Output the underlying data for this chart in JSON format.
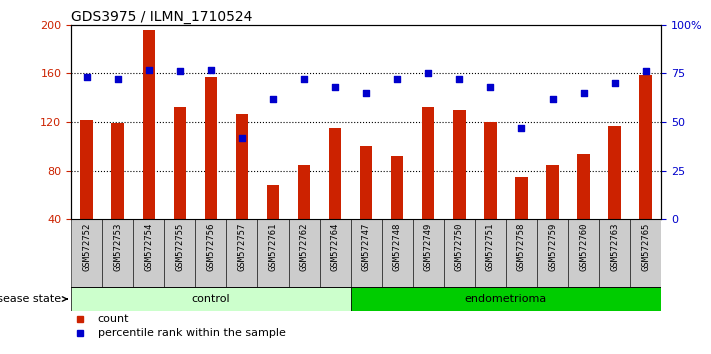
{
  "title": "GDS3975 / ILMN_1710524",
  "samples": [
    "GSM572752",
    "GSM572753",
    "GSM572754",
    "GSM572755",
    "GSM572756",
    "GSM572757",
    "GSM572761",
    "GSM572762",
    "GSM572764",
    "GSM572747",
    "GSM572748",
    "GSM572749",
    "GSM572750",
    "GSM572751",
    "GSM572758",
    "GSM572759",
    "GSM572760",
    "GSM572763",
    "GSM572765"
  ],
  "counts": [
    122,
    119,
    196,
    132,
    157,
    127,
    68,
    85,
    115,
    100,
    92,
    132,
    130,
    120,
    75,
    85,
    94,
    117,
    159
  ],
  "percentiles": [
    73,
    72,
    77,
    76,
    77,
    42,
    62,
    72,
    68,
    65,
    72,
    75,
    72,
    68,
    47,
    62,
    65,
    70,
    76
  ],
  "control_count": 9,
  "endometrioma_count": 10,
  "ylim_left": [
    40,
    200
  ],
  "ylim_right": [
    0,
    100
  ],
  "yticks_left": [
    40,
    80,
    120,
    160,
    200
  ],
  "yticks_right": [
    0,
    25,
    50,
    75,
    100
  ],
  "bar_color": "#cc2200",
  "dot_color": "#0000cc",
  "control_bg_light": "#ccffcc",
  "control_bg_dark": "#00cc00",
  "endometrioma_bg": "#00cc00",
  "label_bg": "#cccccc",
  "legend_count_label": "count",
  "legend_pct_label": "percentile rank within the sample",
  "xlabel_disease": "disease state",
  "control_label": "control",
  "endometrioma_label": "endometrioma"
}
